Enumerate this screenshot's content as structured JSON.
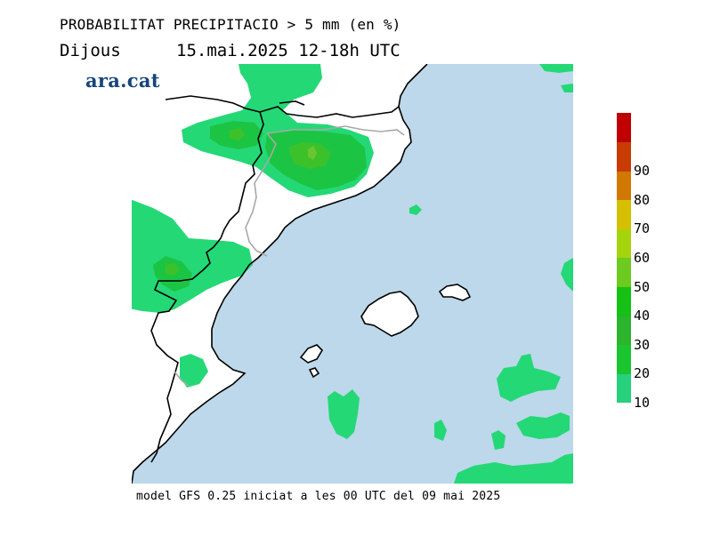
{
  "header": {
    "title": "PROBABILITAT PRECIPITACIO > 5 mm (en %)",
    "day": "Dijous",
    "date_time": "15.mai.2025 12-18h UTC"
  },
  "logo": {
    "text": "ara.cat"
  },
  "footer": {
    "model_note": "model GFS 0.25 iniciat a les 00 UTC del 09 mai 2025"
  },
  "legend": {
    "levels": [
      {
        "label": "10",
        "color": "#26d07c"
      },
      {
        "label": "20",
        "color": "#1ac62f"
      },
      {
        "label": "30",
        "color": "#2cb52c"
      },
      {
        "label": "40",
        "color": "#14c114"
      },
      {
        "label": "50",
        "color": "#6ccb1e"
      },
      {
        "label": "60",
        "color": "#a6d40c"
      },
      {
        "label": "70",
        "color": "#d4c000"
      },
      {
        "label": "80",
        "color": "#d07800"
      },
      {
        "label": "90",
        "color": "#c83c00"
      },
      {
        "label": "",
        "color": "#c00000"
      }
    ]
  },
  "colors": {
    "sea": "#bcd8ea",
    "land": "#ffffff",
    "coast": "#000000",
    "border": "#a8a8a8",
    "prob_10": "#24d876",
    "prob_20": "#1cc444",
    "prob_40": "#3dc12b",
    "prob_50": "#6cc530"
  }
}
